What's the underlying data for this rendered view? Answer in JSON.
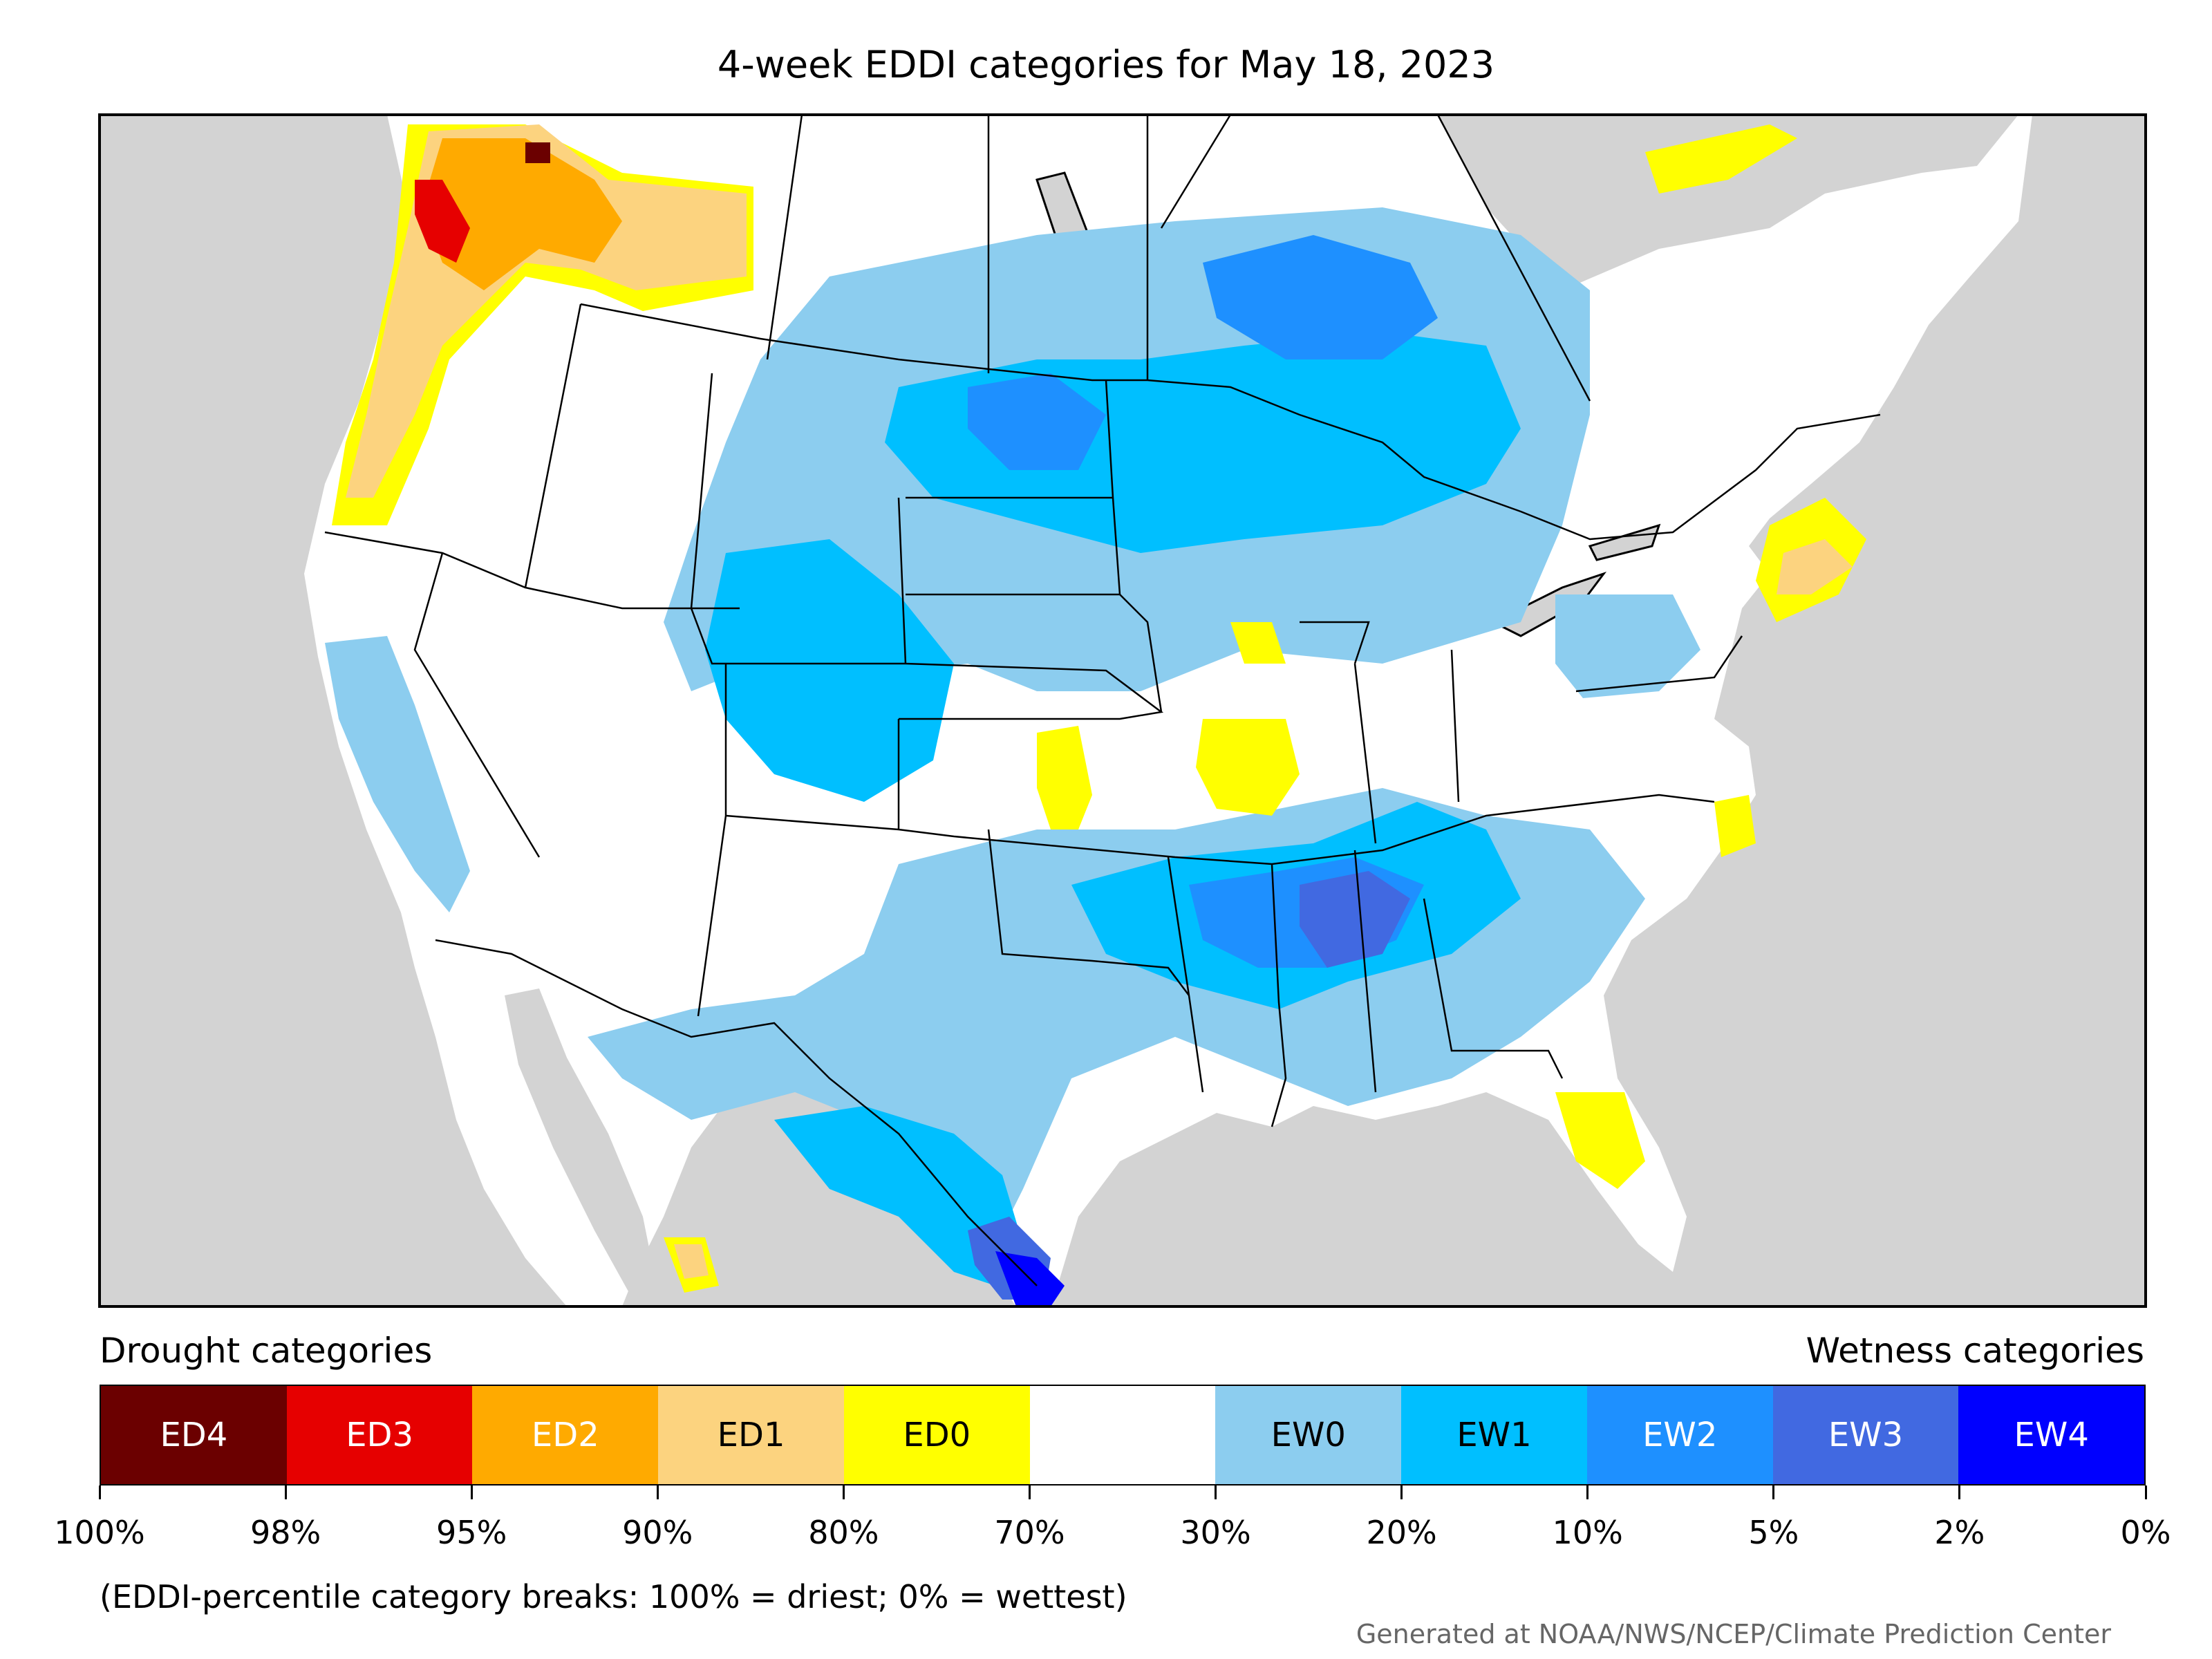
{
  "title": "4-week EDDI categories for May 18, 2023",
  "legend": {
    "drought_heading": "Drought categories",
    "wetness_heading": "Wetness categories",
    "categories": [
      {
        "code": "ED4",
        "color": "#6b0000",
        "text_color": "#ffffff"
      },
      {
        "code": "ED3",
        "color": "#e60000",
        "text_color": "#ffffff"
      },
      {
        "code": "ED2",
        "color": "#ffaa00",
        "text_color": "#ffffff"
      },
      {
        "code": "ED1",
        "color": "#fcd37f",
        "text_color": "#000000"
      },
      {
        "code": "ED0",
        "color": "#ffff00",
        "text_color": "#000000"
      },
      {
        "code": "",
        "color": "#ffffff",
        "text_color": "#000000"
      },
      {
        "code": "EW0",
        "color": "#8ccdef",
        "text_color": "#000000"
      },
      {
        "code": "EW1",
        "color": "#00bfff",
        "text_color": "#000000"
      },
      {
        "code": "EW2",
        "color": "#1e90ff",
        "text_color": "#ffffff"
      },
      {
        "code": "EW3",
        "color": "#4169e1",
        "text_color": "#ffffff"
      },
      {
        "code": "EW4",
        "color": "#0000ff",
        "text_color": "#ffffff"
      }
    ],
    "tick_labels": [
      "100%",
      "98%",
      "95%",
      "90%",
      "80%",
      "70%",
      "30%",
      "20%",
      "10%",
      "5%",
      "2%",
      "0%"
    ]
  },
  "footnote": "(EDDI-percentile category breaks: 100% = driest; 0% = wettest)",
  "credit": "Generated at NOAA/NWS/NCEP/Climate Prediction Center",
  "map": {
    "background_color": "#d3d3d3",
    "land_color": "#ffffff"
  }
}
